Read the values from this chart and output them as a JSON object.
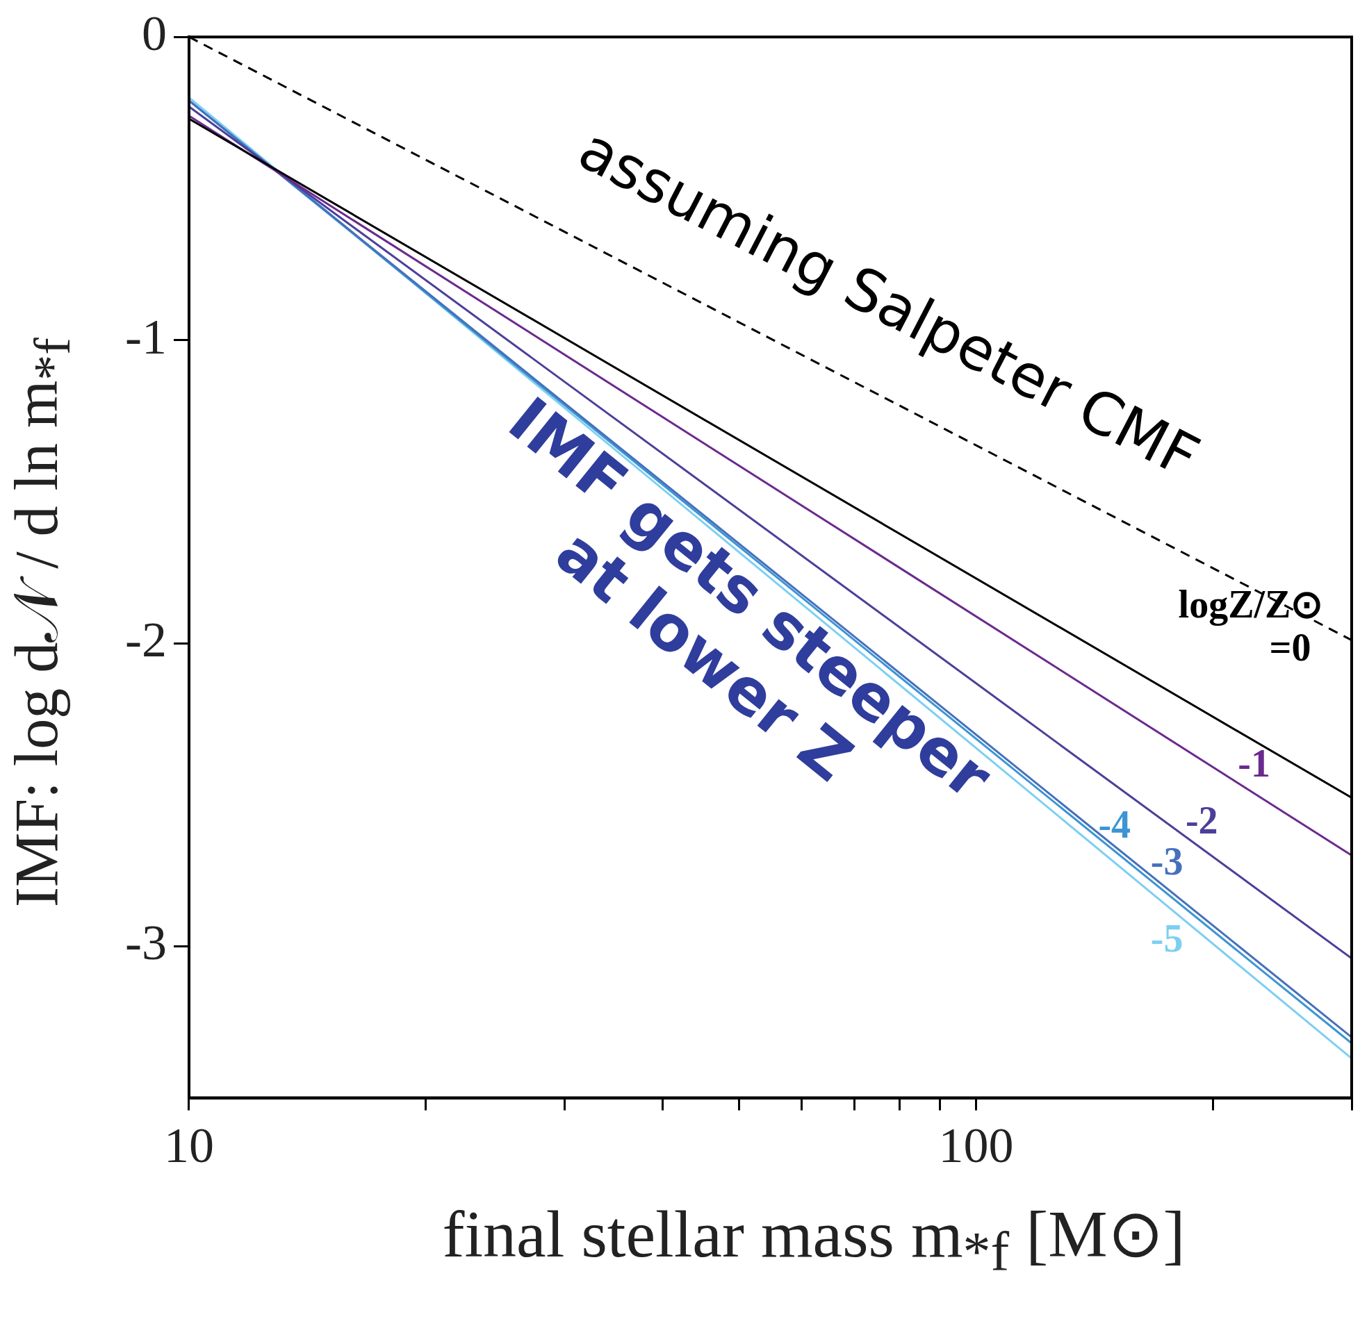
{
  "chart_data": {
    "type": "line",
    "xlabel": "final stellar mass m$_{*f}$ [M⊙]",
    "ylabel": "IMF: log d𝒩 / d ln m$_{*f}$",
    "legend_title": "logZ/Z⊙",
    "xlim": [
      10,
      300
    ],
    "xticks": [
      10,
      {
        "value": 20,
        "label": null
      },
      {
        "value": 30,
        "label": null
      },
      {
        "value": 40,
        "label": null
      },
      {
        "value": 50,
        "label": null
      },
      {
        "value": 60,
        "label": null
      },
      {
        "value": 70,
        "label": null
      },
      {
        "value": 80,
        "label": null
      },
      {
        "value": 90,
        "label": null
      },
      100,
      {
        "value": 200,
        "label": null
      },
      {
        "value": 300,
        "label": null
      }
    ],
    "x": [
      10,
      300
    ],
    "ylim": [
      -3.5,
      0
    ],
    "yticks": [
      0,
      -1,
      -2,
      -3
    ],
    "log": "x",
    "grid": false,
    "legend": false,
    "series": [
      {
        "color": "#000000",
        "line_style": "dashed",
        "values": [
          0,
          -1.99
        ]
      },
      {
        "name": "=0",
        "color": "#000000",
        "values": [
          -0.27,
          -2.51
        ]
      },
      {
        "name": "-1",
        "color": "#6a2a8e",
        "values": [
          -0.26,
          -2.7
        ]
      },
      {
        "name": "-2",
        "color": "#4b3f9a",
        "values": [
          -0.23,
          -3.04
        ]
      },
      {
        "name": "-3",
        "color": "#4670bb",
        "values": [
          -0.21,
          -3.3
        ]
      },
      {
        "name": "-4",
        "color": "#3b95d4",
        "values": [
          -0.21,
          -3.32
        ]
      },
      {
        "name": "-5",
        "color": "#7dcff2",
        "values": [
          -0.2,
          -3.37
        ]
      }
    ],
    "annotations": [
      "assuming Salpeter CMF",
      "IMF gets steeper at lower Z"
    ]
  }
}
